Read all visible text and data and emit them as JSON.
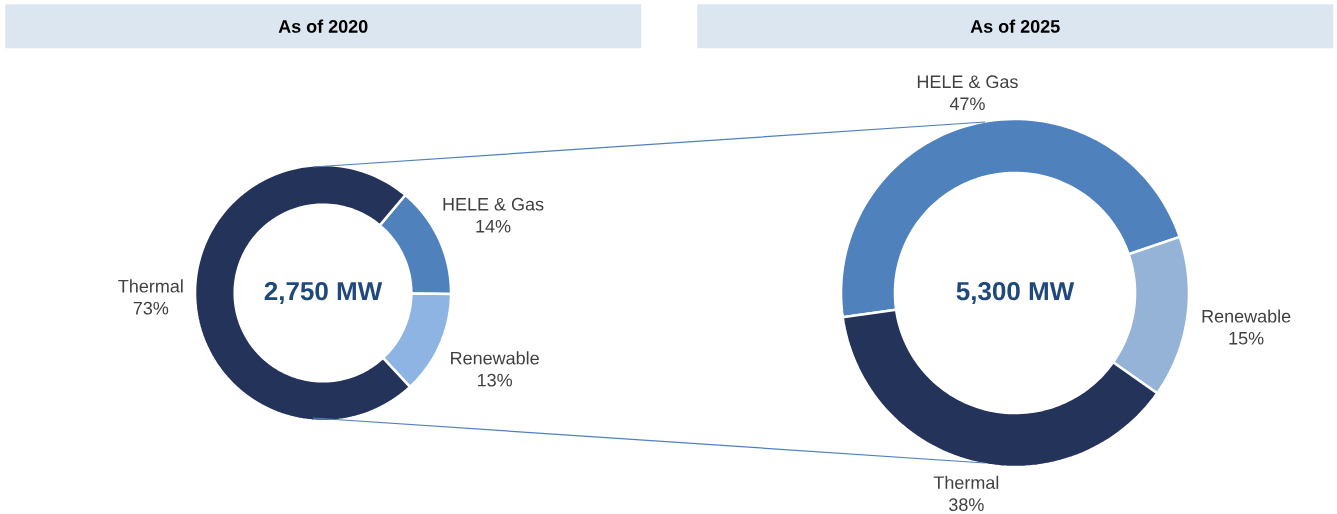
{
  "chart_data": [
    {
      "type": "donut",
      "title": "As of 2020",
      "categories": [
        "HELE & Gas",
        "Renewable",
        "Thermal"
      ],
      "values": [
        14,
        13,
        73
      ],
      "colors": [
        "#4f81bd",
        "#8db4e2",
        "#243359"
      ],
      "value_labels": [
        "14%",
        "13%",
        "73%"
      ],
      "annotations": [
        "2,750 MW"
      ]
    },
    {
      "type": "donut",
      "title": "As of 2025",
      "categories": [
        "HELE & Gas",
        "Renewable",
        "Thermal"
      ],
      "values": [
        47,
        15,
        38
      ],
      "colors": [
        "#4f81bd",
        "#95b3d7",
        "#243359"
      ],
      "value_labels": [
        "47%",
        "15%",
        "38%"
      ],
      "annotations": [
        "5,300 MW"
      ]
    }
  ]
}
